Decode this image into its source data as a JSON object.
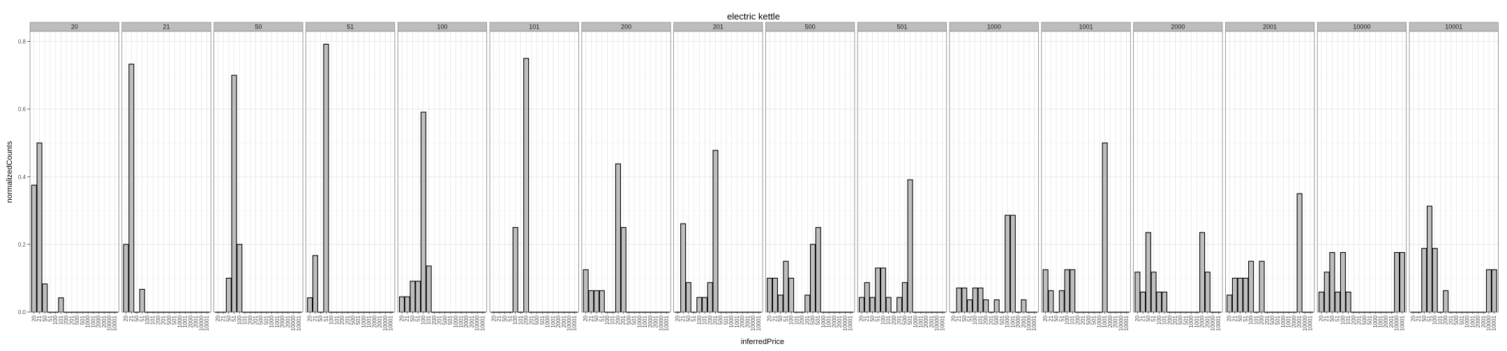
{
  "chart_data": {
    "type": "bar",
    "title": "electric kettle",
    "xlabel": "inferredPrice",
    "ylabel": "normalizedCounts",
    "ylim": [
      0,
      0.83
    ],
    "yticks": [
      "0.0",
      "0.2",
      "0.4",
      "0.6",
      "0.8"
    ],
    "yticks_values": [
      0,
      0.2,
      0.4,
      0.6,
      0.8
    ],
    "grid": true,
    "categories": [
      "20",
      "21",
      "50",
      "51",
      "100",
      "101",
      "200",
      "201",
      "500",
      "501",
      "1000",
      "1001",
      "2000",
      "2001",
      "10000",
      "10001"
    ],
    "facets": [
      {
        "label": "20",
        "values": [
          0.375,
          0.5,
          0.083,
          0,
          0,
          0.042,
          0,
          0,
          0,
          0,
          0,
          0,
          0,
          0,
          0,
          0
        ]
      },
      {
        "label": "21",
        "values": [
          0.2,
          0.733,
          0,
          0.067,
          0,
          0,
          0,
          0,
          0,
          0,
          0,
          0,
          0,
          0,
          0,
          0
        ]
      },
      {
        "label": "50",
        "values": [
          0,
          0,
          0.1,
          0.7,
          0.2,
          0,
          0,
          0,
          0,
          0,
          0,
          0,
          0,
          0,
          0,
          0
        ]
      },
      {
        "label": "51",
        "values": [
          0.042,
          0.167,
          0,
          0.792,
          0,
          0,
          0,
          0,
          0,
          0,
          0,
          0,
          0,
          0,
          0,
          0
        ]
      },
      {
        "label": "100",
        "values": [
          0.045,
          0.045,
          0.091,
          0.091,
          0.591,
          0.136,
          0,
          0,
          0,
          0,
          0,
          0,
          0,
          0,
          0,
          0
        ]
      },
      {
        "label": "101",
        "values": [
          0,
          0,
          0,
          0,
          0.25,
          0,
          0.75,
          0,
          0,
          0,
          0,
          0,
          0,
          0,
          0,
          0
        ]
      },
      {
        "label": "200",
        "values": [
          0.125,
          0.063,
          0.063,
          0.063,
          0,
          0,
          0.438,
          0.25,
          0,
          0,
          0,
          0,
          0,
          0,
          0,
          0
        ]
      },
      {
        "label": "201",
        "values": [
          0,
          0.261,
          0.087,
          0,
          0.043,
          0.043,
          0.087,
          0.478,
          0,
          0,
          0,
          0,
          0,
          0,
          0,
          0
        ]
      },
      {
        "label": "500",
        "values": [
          0.1,
          0.1,
          0.05,
          0.15,
          0.1,
          0,
          0,
          0.05,
          0.2,
          0.25,
          0,
          0,
          0,
          0,
          0,
          0
        ]
      },
      {
        "label": "501",
        "values": [
          0.043,
          0.087,
          0.043,
          0.13,
          0.13,
          0.043,
          0,
          0.043,
          0.087,
          0.391,
          0,
          0,
          0,
          0,
          0,
          0
        ]
      },
      {
        "label": "1000",
        "values": [
          0,
          0.071,
          0.071,
          0.036,
          0.071,
          0.071,
          0.036,
          0,
          0.036,
          0,
          0.286,
          0.286,
          0,
          0.036,
          0,
          0
        ]
      },
      {
        "label": "1001",
        "values": [
          0.125,
          0.063,
          0,
          0.063,
          0.125,
          0.125,
          0,
          0,
          0,
          0,
          0,
          0.5,
          0,
          0,
          0,
          0
        ]
      },
      {
        "label": "2000",
        "values": [
          0.118,
          0.059,
          0.235,
          0.118,
          0.059,
          0.059,
          0,
          0,
          0,
          0,
          0,
          0,
          0.235,
          0.118,
          0,
          0
        ]
      },
      {
        "label": "2001",
        "values": [
          0.05,
          0.1,
          0.1,
          0.1,
          0.15,
          0,
          0.15,
          0,
          0,
          0,
          0,
          0,
          0,
          0.35,
          0,
          0
        ]
      },
      {
        "label": "10000",
        "values": [
          0.059,
          0.118,
          0.176,
          0.059,
          0.176,
          0.059,
          0,
          0,
          0,
          0,
          0,
          0,
          0,
          0,
          0.176,
          0.176
        ]
      },
      {
        "label": "10001",
        "values": [
          0,
          0,
          0.188,
          0.313,
          0.188,
          0,
          0.063,
          0,
          0,
          0,
          0,
          0,
          0,
          0,
          0.125,
          0.125
        ]
      }
    ]
  },
  "colors": {
    "bar_fill": "#bebebe",
    "bar_stroke": "#000000",
    "strip_fill": "#bdbdbd",
    "strip_stroke": "#7f7f7f",
    "panel_border": "#7f7f7f",
    "grid_major": "#e6e6e6",
    "grid_minor": "#f3f3f3",
    "tick_text": "#4d4d4d"
  }
}
